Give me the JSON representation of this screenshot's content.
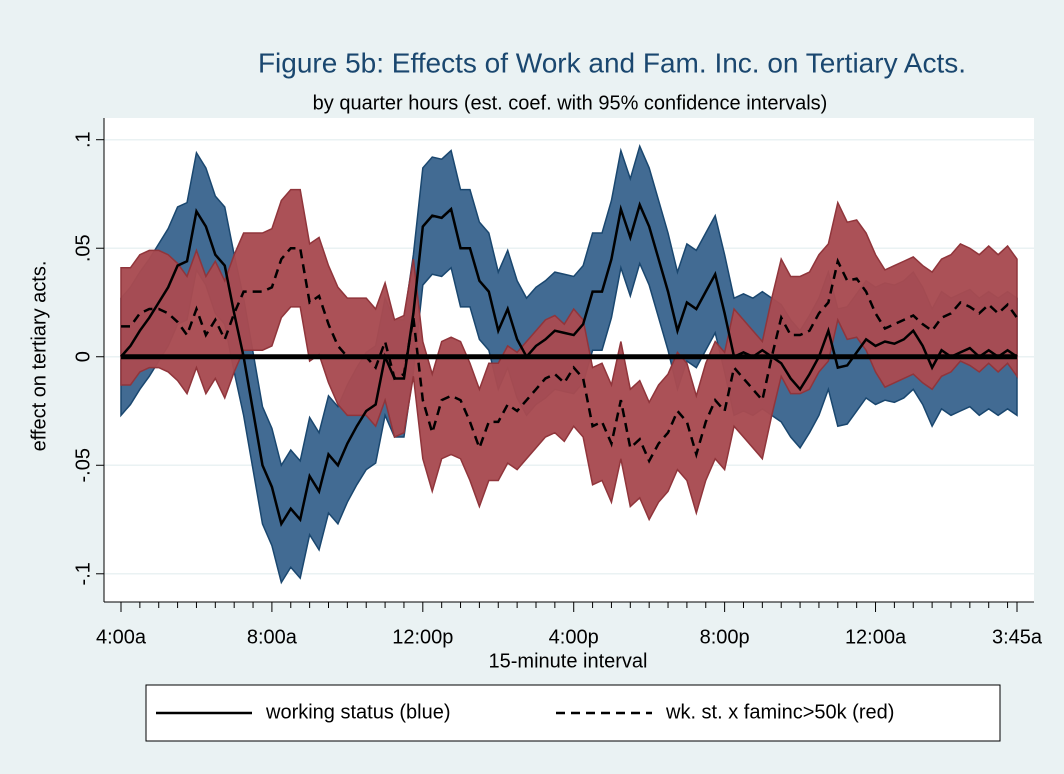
{
  "chart_data": {
    "type": "band-line",
    "title": "Figure 5b: Effects of Work and Fam. Inc. on Tertiary Acts.",
    "subtitle": "by quarter hours (est. coef. with 95% confidence intervals)",
    "x_label": "15-minute interval",
    "y_label": "effect on tertiary acts.",
    "categories": [
      "4:00a",
      null,
      null,
      null,
      null,
      null,
      null,
      null,
      null,
      null,
      null,
      null,
      null,
      null,
      null,
      null,
      "8:00a",
      null,
      null,
      null,
      null,
      null,
      null,
      null,
      null,
      null,
      null,
      null,
      null,
      null,
      null,
      null,
      "12:00p",
      null,
      null,
      null,
      null,
      null,
      null,
      null,
      null,
      null,
      null,
      null,
      null,
      null,
      null,
      null,
      "4:00p",
      null,
      null,
      null,
      null,
      null,
      null,
      null,
      null,
      null,
      null,
      null,
      null,
      null,
      null,
      null,
      "8:00p",
      null,
      null,
      null,
      null,
      null,
      null,
      null,
      null,
      null,
      null,
      null,
      null,
      null,
      null,
      null,
      "12:00a",
      null,
      null,
      null,
      null,
      null,
      null,
      null,
      null,
      null,
      null,
      null,
      null,
      null,
      null,
      "3:45a"
    ],
    "ylim": [
      -0.113,
      0.11
    ],
    "yticks": [
      {
        "value": -0.1,
        "label": "-.1"
      },
      {
        "value": -0.05,
        "label": "-.05"
      },
      0,
      {
        "value": 0.05,
        "label": ".05"
      },
      {
        "value": 0.1,
        "label": ".1"
      }
    ],
    "grid": true,
    "yline": 0,
    "series": [
      {
        "name": "working status (blue)",
        "color": "#000000",
        "band_color": "#3c6690",
        "band_stroke": "#1a476f",
        "dash": false,
        "values": [
          0,
          0.005,
          0.012,
          0.018,
          0.025,
          0.032,
          0.042,
          0.044,
          0.067,
          0.06,
          0.047,
          0.042,
          0.02,
          0,
          -0.025,
          -0.05,
          -0.06,
          -0.077,
          -0.07,
          -0.075,
          -0.055,
          -0.062,
          -0.045,
          -0.05,
          -0.04,
          -0.032,
          -0.025,
          -0.022,
          0,
          -0.01,
          -0.01,
          0.02,
          0.06,
          0.065,
          0.064,
          0.068,
          0.05,
          0.05,
          0.035,
          0.03,
          0.012,
          0.022,
          0.008,
          0,
          0.005,
          0.008,
          0.012,
          0.011,
          0.01,
          0.015,
          0.03,
          0.03,
          0.045,
          0.068,
          0.055,
          0.07,
          0.06,
          0.045,
          0.03,
          0.012,
          0.025,
          0.022,
          0.03,
          0.038,
          0.02,
          0,
          0.002,
          0,
          0.003,
          0,
          -0.003,
          -0.01,
          -0.015,
          -0.008,
          0,
          0.012,
          -0.005,
          -0.004,
          0.002,
          0.008,
          0.005,
          0.007,
          0.006,
          0.008,
          0.012,
          0.005,
          -0.005,
          0.003,
          0,
          0.002,
          0.004,
          0,
          0.003,
          0,
          0.003,
          0
        ],
        "upper": [
          0.027,
          0.032,
          0.039,
          0.045,
          0.052,
          0.059,
          0.069,
          0.071,
          0.094,
          0.087,
          0.074,
          0.069,
          0.047,
          0.027,
          0.002,
          -0.023,
          -0.033,
          -0.05,
          -0.043,
          -0.048,
          -0.028,
          -0.035,
          -0.018,
          -0.023,
          -0.013,
          -0.005,
          0.002,
          0.005,
          0.027,
          0.017,
          0.017,
          0.047,
          0.087,
          0.092,
          0.091,
          0.095,
          0.077,
          0.077,
          0.062,
          0.057,
          0.039,
          0.049,
          0.035,
          0.027,
          0.032,
          0.035,
          0.039,
          0.038,
          0.037,
          0.042,
          0.057,
          0.057,
          0.072,
          0.095,
          0.082,
          0.097,
          0.087,
          0.072,
          0.057,
          0.039,
          0.052,
          0.049,
          0.057,
          0.065,
          0.047,
          0.027,
          0.029,
          0.027,
          0.03,
          0.027,
          0.024,
          0.017,
          0.012,
          0.019,
          0.027,
          0.039,
          0.022,
          0.023,
          0.029,
          0.035,
          0.032,
          0.034,
          0.033,
          0.035,
          0.039,
          0.032,
          0.022,
          0.03,
          0.027,
          0.029,
          0.031,
          0.027,
          0.03,
          0.027,
          0.03,
          0.027
        ],
        "lower": [
          -0.027,
          -0.022,
          -0.015,
          -0.009,
          -0.002,
          0.005,
          0.015,
          0.017,
          0.04,
          0.033,
          0.02,
          0.015,
          -0.007,
          -0.027,
          -0.052,
          -0.077,
          -0.087,
          -0.104,
          -0.097,
          -0.102,
          -0.082,
          -0.089,
          -0.072,
          -0.077,
          -0.067,
          -0.059,
          -0.052,
          -0.049,
          -0.027,
          -0.037,
          -0.037,
          -0.007,
          0.033,
          0.038,
          0.037,
          0.041,
          0.023,
          0.023,
          0.008,
          0.003,
          -0.015,
          -0.005,
          -0.019,
          -0.027,
          -0.022,
          -0.019,
          -0.015,
          -0.016,
          -0.017,
          -0.012,
          0.003,
          0.003,
          0.018,
          0.041,
          0.028,
          0.043,
          0.033,
          0.018,
          0.003,
          -0.015,
          -0.002,
          -0.005,
          0.003,
          0.011,
          -0.007,
          -0.027,
          -0.025,
          -0.027,
          -0.024,
          -0.027,
          -0.03,
          -0.037,
          -0.042,
          -0.035,
          -0.027,
          -0.015,
          -0.032,
          -0.031,
          -0.025,
          -0.019,
          -0.022,
          -0.02,
          -0.021,
          -0.019,
          -0.015,
          -0.022,
          -0.032,
          -0.024,
          -0.027,
          -0.025,
          -0.023,
          -0.027,
          -0.024,
          -0.027,
          -0.024,
          -0.027
        ]
      },
      {
        "name": "wk. st. x faminc>50k (red)",
        "color": "#000000",
        "band_color": "#a84b52",
        "band_stroke": "#90353b",
        "dash": true,
        "values": [
          0.014,
          0.014,
          0.02,
          0.022,
          0.022,
          0.02,
          0.016,
          0.01,
          0.022,
          0.01,
          0.017,
          0.008,
          0.02,
          0.03,
          0.03,
          0.03,
          0.032,
          0.045,
          0.05,
          0.05,
          0.025,
          0.028,
          0.015,
          0.005,
          0,
          0,
          0,
          -0.005,
          0.007,
          -0.01,
          -0.008,
          0.018,
          -0.02,
          -0.035,
          -0.02,
          -0.018,
          -0.02,
          -0.03,
          -0.042,
          -0.03,
          -0.03,
          -0.022,
          -0.025,
          -0.02,
          -0.015,
          -0.01,
          -0.008,
          -0.012,
          -0.005,
          -0.01,
          -0.032,
          -0.03,
          -0.04,
          -0.02,
          -0.042,
          -0.038,
          -0.048,
          -0.04,
          -0.035,
          -0.025,
          -0.03,
          -0.045,
          -0.03,
          -0.02,
          -0.025,
          -0.005,
          -0.01,
          -0.015,
          -0.02,
          0,
          0.018,
          0.01,
          0.01,
          0.012,
          0.02,
          0.025,
          0.044,
          0.035,
          0.036,
          0.03,
          0.02,
          0.013,
          0.015,
          0.017,
          0.019,
          0.015,
          0.012,
          0.018,
          0.02,
          0.025,
          0.023,
          0.02,
          0.024,
          0.02,
          0.024,
          0.018
        ],
        "upper": [
          0.041,
          0.041,
          0.047,
          0.049,
          0.049,
          0.047,
          0.043,
          0.037,
          0.049,
          0.037,
          0.044,
          0.035,
          0.047,
          0.057,
          0.057,
          0.057,
          0.059,
          0.072,
          0.077,
          0.077,
          0.052,
          0.055,
          0.042,
          0.032,
          0.027,
          0.027,
          0.027,
          0.022,
          0.034,
          0.017,
          0.019,
          0.045,
          0.007,
          -0.008,
          0.007,
          0.009,
          0.007,
          -0.003,
          -0.015,
          -0.003,
          -0.003,
          0.005,
          0.002,
          0.007,
          0.012,
          0.017,
          0.019,
          0.015,
          0.022,
          0.017,
          -0.005,
          -0.003,
          -0.013,
          0.007,
          -0.015,
          -0.011,
          -0.021,
          -0.013,
          -0.008,
          0.002,
          -0.003,
          -0.018,
          -0.003,
          0.007,
          0.002,
          0.022,
          0.017,
          0.012,
          0.007,
          0.027,
          0.045,
          0.037,
          0.037,
          0.039,
          0.047,
          0.052,
          0.071,
          0.062,
          0.063,
          0.057,
          0.047,
          0.04,
          0.042,
          0.044,
          0.046,
          0.042,
          0.039,
          0.045,
          0.047,
          0.052,
          0.05,
          0.047,
          0.051,
          0.047,
          0.051,
          0.045
        ],
        "lower": [
          -0.013,
          -0.013,
          -0.007,
          -0.005,
          -0.005,
          -0.007,
          -0.011,
          -0.017,
          -0.005,
          -0.017,
          -0.01,
          -0.019,
          -0.007,
          0.003,
          0.003,
          0.003,
          0.005,
          0.018,
          0.023,
          0.023,
          -0.002,
          0.001,
          -0.012,
          -0.022,
          -0.027,
          -0.027,
          -0.027,
          -0.032,
          -0.02,
          -0.037,
          -0.035,
          -0.009,
          -0.047,
          -0.062,
          -0.047,
          -0.045,
          -0.047,
          -0.057,
          -0.069,
          -0.057,
          -0.057,
          -0.049,
          -0.052,
          -0.047,
          -0.042,
          -0.037,
          -0.035,
          -0.039,
          -0.032,
          -0.037,
          -0.059,
          -0.057,
          -0.067,
          -0.047,
          -0.069,
          -0.065,
          -0.075,
          -0.067,
          -0.062,
          -0.052,
          -0.057,
          -0.072,
          -0.057,
          -0.047,
          -0.052,
          -0.032,
          -0.037,
          -0.042,
          -0.047,
          -0.027,
          -0.009,
          -0.017,
          -0.017,
          -0.015,
          -0.007,
          -0.002,
          0.017,
          0.008,
          0.009,
          0.003,
          -0.007,
          -0.014,
          -0.012,
          -0.01,
          -0.008,
          -0.012,
          -0.015,
          -0.009,
          -0.007,
          -0.002,
          -0.004,
          -0.007,
          -0.003,
          -0.007,
          -0.003,
          -0.009
        ]
      }
    ]
  }
}
